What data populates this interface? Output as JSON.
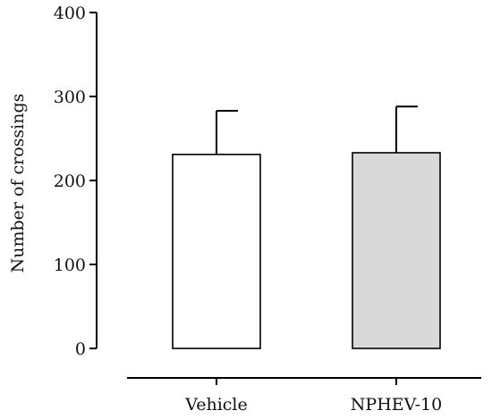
{
  "chart_data": {
    "type": "bar",
    "title": "",
    "xlabel": "",
    "ylabel": "Number of crossings",
    "ylim": [
      0,
      400
    ],
    "yticks": [
      0,
      100,
      200,
      300,
      400
    ],
    "categories": [
      "Vehicle",
      "NPHEV-10"
    ],
    "values": [
      231,
      233
    ],
    "errors": [
      52,
      55
    ],
    "bar_colors": [
      "#ffffff",
      "#d9d9d9"
    ],
    "grid": false,
    "legend": "none"
  }
}
